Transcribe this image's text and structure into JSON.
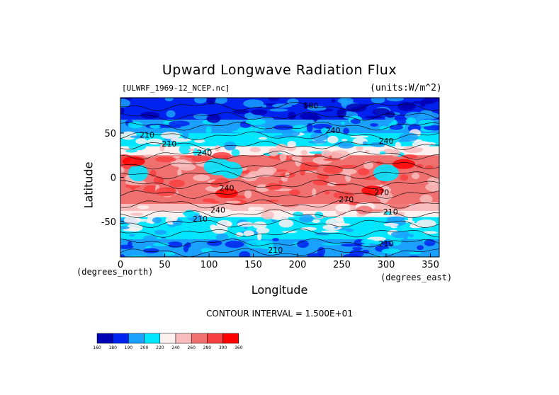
{
  "chart_data": {
    "type": "heatmap",
    "title": "Upward Longwave Radiation Flux",
    "dataset_label": "[ULWRF_1969-12_NCEP.nc]",
    "units_label": "(units:W/m^2)",
    "xlabel": "Longitude",
    "ylabel": "Latitude",
    "x_units": "(degrees_east)",
    "y_units": "(degrees_north)",
    "xlim": [
      0,
      360
    ],
    "ylim": [
      -90,
      90
    ],
    "x_ticks": [
      "0",
      "50",
      "100",
      "150",
      "200",
      "250",
      "300",
      "350"
    ],
    "y_ticks": [
      "50",
      "0",
      "-50"
    ],
    "contour_interval_text": "CONTOUR INTERVAL = 1.500E+01",
    "contour_labels": [
      "180",
      "210",
      "210",
      "240",
      "240",
      "270",
      "270",
      "240",
      "210",
      "240",
      "240",
      "210",
      "210",
      "210"
    ],
    "colorbar": {
      "levels": [
        "160",
        "180",
        "190",
        "200",
        "220",
        "240",
        "260",
        "280",
        "300",
        "360"
      ],
      "colors": [
        "#0000b4",
        "#0022ee",
        "#1aa0ff",
        "#00e6ff",
        "#fff0f0",
        "#f8bcbc",
        "#f07070",
        "#f83f3f",
        "#ff0000"
      ]
    },
    "lat_bands": [
      {
        "lat": [
          65,
          90
        ],
        "level": 1
      },
      {
        "lat": [
          50,
          65
        ],
        "level": 2
      },
      {
        "lat": [
          35,
          50
        ],
        "level": 3
      },
      {
        "lat": [
          25,
          35
        ],
        "level": 4
      },
      {
        "lat": [
          10,
          25
        ],
        "level": 6
      },
      {
        "lat": [
          -10,
          10
        ],
        "level": 6
      },
      {
        "lat": [
          -30,
          -10
        ],
        "level": 6
      },
      {
        "lat": [
          -38,
          -30
        ],
        "level": 5
      },
      {
        "lat": [
          -45,
          -38
        ],
        "level": 4
      },
      {
        "lat": [
          -70,
          -45
        ],
        "level": 3
      },
      {
        "lat": [
          -90,
          -70
        ],
        "level": 2
      }
    ]
  }
}
